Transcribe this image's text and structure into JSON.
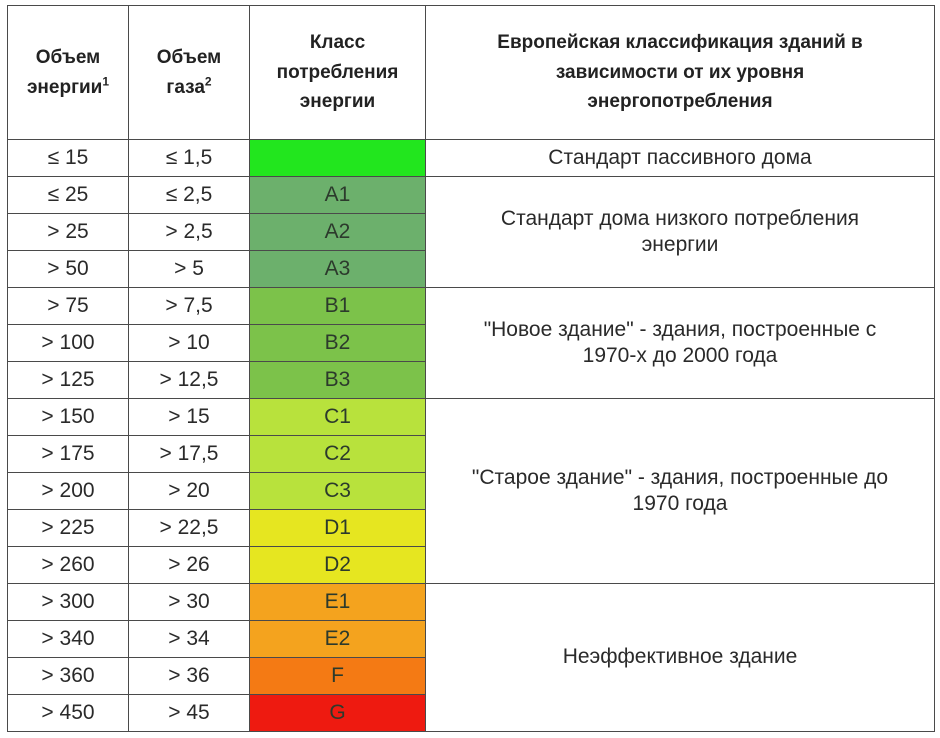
{
  "headers": {
    "energy_line1": "Объем",
    "energy_line2": "энергии",
    "energy_sup": "1",
    "gas_line1": "Объем",
    "gas_line2": "газа",
    "gas_sup": "2",
    "class_line1": "Класс",
    "class_line2": "потребления",
    "class_line3": "энергии",
    "desc_line1": "Европейская классификация зданий в",
    "desc_line2": "зависимости от их уровня",
    "desc_line3": "энергопотребления"
  },
  "rows": [
    {
      "energy": "≤ 15",
      "gas": "≤ 1,5",
      "class": "",
      "color": "#22e61e"
    },
    {
      "energy": "≤ 25",
      "gas": "≤ 2,5",
      "class": "A1",
      "color": "#6cb06c"
    },
    {
      "energy": "> 25",
      "gas": "> 2,5",
      "class": "A2",
      "color": "#6cb06c"
    },
    {
      "energy": "> 50",
      "gas": "> 5",
      "class": "A3",
      "color": "#6cb06c"
    },
    {
      "energy": "> 75",
      "gas": "> 7,5",
      "class": "B1",
      "color": "#7cc24a"
    },
    {
      "energy": "> 100",
      "gas": "> 10",
      "class": "B2",
      "color": "#7cc24a"
    },
    {
      "energy": "> 125",
      "gas": "> 12,5",
      "class": "B3",
      "color": "#7cc24a"
    },
    {
      "energy": "> 150",
      "gas": "> 15",
      "class": "C1",
      "color": "#b8e23c"
    },
    {
      "energy": "> 175",
      "gas": "> 17,5",
      "class": "C2",
      "color": "#b8e23c"
    },
    {
      "energy": "> 200",
      "gas": "> 20",
      "class": "C3",
      "color": "#b8e23c"
    },
    {
      "energy": "> 225",
      "gas": "> 22,5",
      "class": "D1",
      "color": "#e6e620"
    },
    {
      "energy": "> 260",
      "gas": "> 26",
      "class": "D2",
      "color": "#e6e620"
    },
    {
      "energy": "> 300",
      "gas": "> 30",
      "class": "E1",
      "color": "#f4a31e"
    },
    {
      "energy": "> 340",
      "gas": "> 34",
      "class": "E2",
      "color": "#f4a31e"
    },
    {
      "energy": "> 360",
      "gas": "> 36",
      "class": "F",
      "color": "#f47a14"
    },
    {
      "energy": "> 450",
      "gas": "> 45",
      "class": "G",
      "color": "#ee1a10"
    }
  ],
  "descriptions": [
    {
      "lines": [
        "Стандарт пассивного дома"
      ]
    },
    {
      "lines": [
        "Стандарт  дома низкого потребления",
        "энергии"
      ]
    },
    {
      "lines": [
        "\"Новое здание\" - здания, построенные с",
        "1970-х до 2000 года"
      ]
    },
    {
      "lines": [
        "\"Старое здание\" - здания, построенные до",
        "1970 года"
      ]
    },
    {
      "lines": [
        "Неэффективное здание"
      ]
    }
  ]
}
